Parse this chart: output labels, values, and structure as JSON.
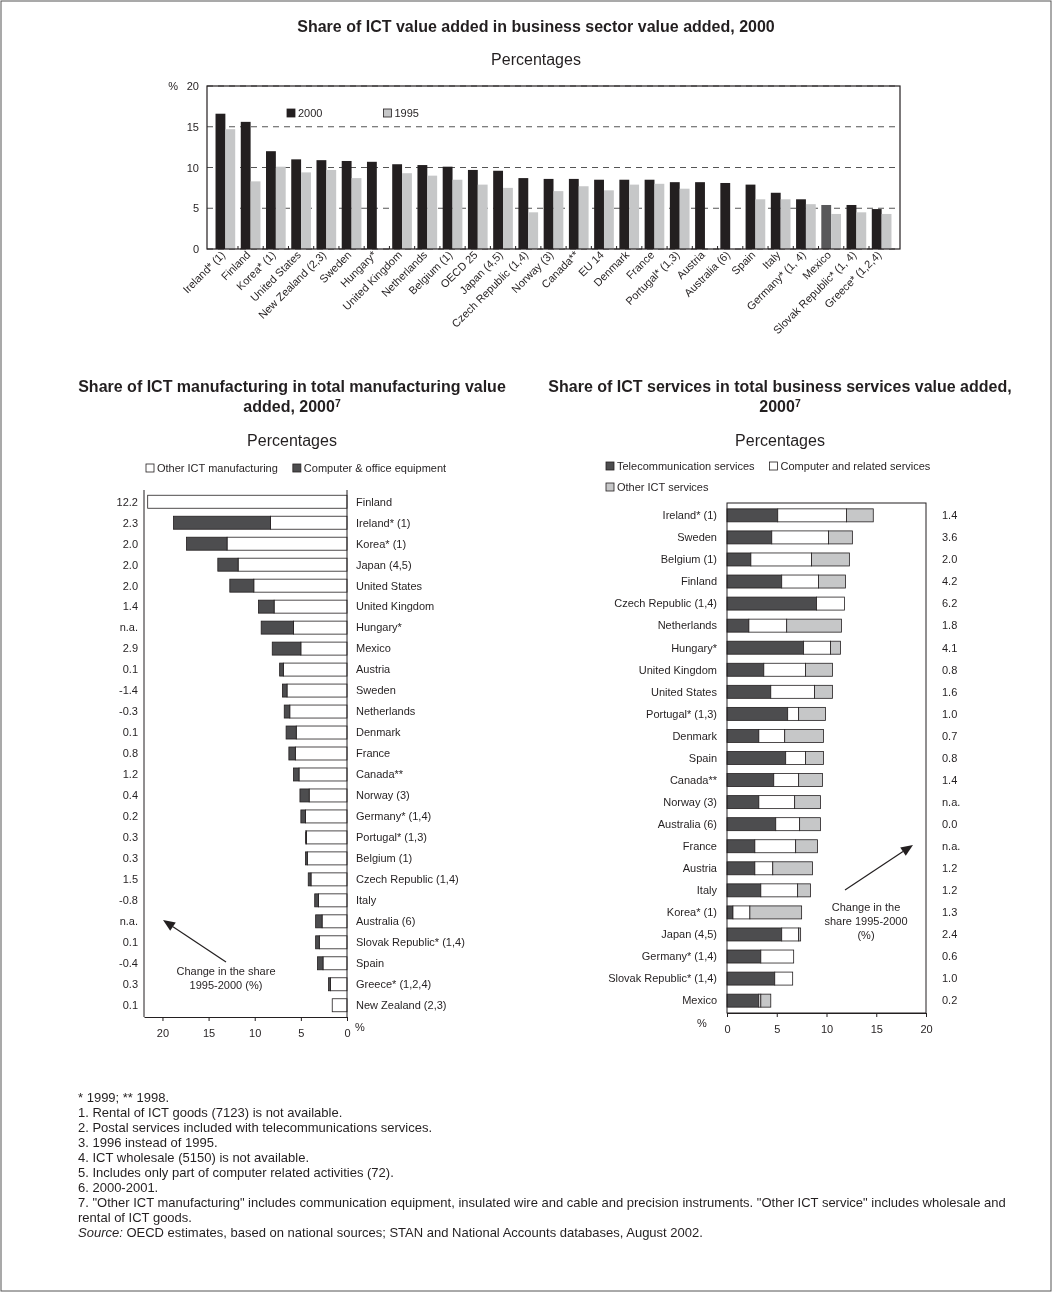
{
  "chart_data": [
    {
      "type": "bar",
      "title": "Share of ICT value added in business sector value added, 2000",
      "subtitle": "Percentages",
      "ylabel": "%",
      "categories": [
        "Ireland* (1)",
        "Finland",
        "Korea* (1)",
        "United States",
        "New Zealand (2,3)",
        "Sweden",
        "Hungary*",
        "United Kingdom",
        "Netherlands",
        "Belgium (1)",
        "OECD 25",
        "Japan (4,5)",
        "Czech Republic (1,4)",
        "Norway (3)",
        "Canada**",
        "EU 14",
        "Denmark",
        "France",
        "Portugal* (1,3)",
        "Austria",
        "Australia (6)",
        "Spain",
        "Italy",
        "Germany* (1, 4)",
        "Mexico",
        "Slovak Republic* (1, 4)",
        "Greece* (1,2,4)"
      ],
      "series": [
        {
          "name": "2000",
          "color": "#231f20",
          "colors": [
            "#231f20",
            "#231f20",
            "#231f20",
            "#231f20",
            "#231f20",
            "#231f20",
            "#231f20",
            "#231f20",
            "#231f20",
            "#231f20",
            "#231f20",
            "#231f20",
            "#231f20",
            "#231f20",
            "#231f20",
            "#231f20",
            "#231f20",
            "#231f20",
            "#231f20",
            "#231f20",
            "#231f20",
            "#231f20",
            "#231f20",
            "#231f20",
            "#58585a",
            "#231f20",
            "#231f20"
          ],
          "values": [
            16.6,
            15.6,
            12.0,
            11.0,
            10.9,
            10.8,
            10.7,
            10.4,
            10.3,
            10.1,
            9.7,
            9.6,
            8.7,
            8.6,
            8.6,
            8.5,
            8.5,
            8.5,
            8.2,
            8.2,
            8.1,
            7.9,
            6.9,
            6.1,
            5.4,
            5.4,
            4.9
          ]
        },
        {
          "name": "1995",
          "color": "#c6c7c8",
          "values": [
            14.7,
            8.3,
            10.1,
            9.4,
            9.7,
            8.7,
            null,
            9.3,
            9.0,
            8.5,
            7.9,
            7.5,
            4.5,
            7.1,
            7.7,
            7.2,
            7.9,
            8.0,
            7.4,
            null,
            null,
            6.1,
            6.1,
            5.5,
            4.3,
            4.5,
            4.3
          ]
        }
      ],
      "ylim": [
        0,
        20
      ],
      "yticks": [
        0,
        5,
        10,
        15,
        20
      ],
      "grid": "y",
      "legend": "top left"
    },
    {
      "type": "bar",
      "orientation": "horizontal",
      "stacked": true,
      "title": "Share of ICT manufacturing in total manufacturing value added, 2000$^{7}$",
      "subtitle": "Percentages",
      "xlabel": "%",
      "categories": [
        "Finland",
        "Ireland* (1)",
        "Korea* (1)",
        "Japan (4,5)",
        "United States",
        "United Kingdom",
        "Hungary*",
        "Mexico",
        "Austria",
        "Sweden",
        "Netherlands",
        "Denmark",
        "France",
        "Canada**",
        "Norway (3)",
        "Germany* (1,4)",
        "Portugal* (1,3)",
        "Belgium (1)",
        "Czech Republic (1,4)",
        "Italy",
        "Australia (6)",
        "Slovak Republic* (1,4)",
        "Spain",
        "Greece* (1,2,4)",
        "New Zealand (2,3)"
      ],
      "series": [
        {
          "name": "Other ICT manufacturing",
          "color": "#ffffff",
          "values": [
            21.6,
            8.3,
            13.0,
            11.8,
            10.1,
            7.9,
            5.8,
            5.0,
            6.9,
            6.5,
            6.2,
            5.5,
            5.6,
            5.2,
            4.1,
            4.5,
            4.4,
            4.3,
            3.9,
            3.1,
            2.7,
            3.0,
            2.6,
            1.8,
            1.6
          ]
        },
        {
          "name": "Computer & office equipment",
          "color": "#4d4d4f",
          "values": [
            0,
            10.5,
            4.4,
            2.2,
            2.6,
            1.7,
            3.5,
            3.1,
            0.4,
            0.5,
            0.6,
            1.1,
            0.7,
            0.6,
            1.0,
            0.5,
            0.1,
            0.2,
            0.3,
            0.4,
            0.7,
            0.4,
            0.6,
            0.2,
            0
          ]
        }
      ],
      "xlim": [
        22,
        0
      ],
      "xticks": [
        20,
        15,
        10,
        5,
        0
      ],
      "legend": "top",
      "annotations": [
        "12.2",
        "2.3",
        "2.0",
        "2.0",
        "2.0",
        "1.4",
        "n.a.",
        "2.9",
        "0.1",
        "-1.4",
        "-0.3",
        "0.1",
        "0.8",
        "1.2",
        "0.4",
        "0.2",
        "0.3",
        "0.3",
        "1.5",
        "-0.8",
        "n.a.",
        "0.1",
        "-0.4",
        "0.3",
        "0.1",
        "Change in the share 1995-2000 (%)"
      ]
    },
    {
      "type": "bar",
      "orientation": "horizontal",
      "stacked": true,
      "title": "Share of ICT services in total business services value added, 2000$^{7}$",
      "subtitle": "Percentages",
      "xlabel": "%",
      "categories": [
        "Ireland* (1)",
        "Sweden",
        "Belgium (1)",
        "Finland",
        "Czech Republic (1,4)",
        "Netherlands",
        "Hungary*",
        "United Kingdom",
        "United States",
        "Portugal* (1,3)",
        "Denmark",
        "Spain",
        "Canada**",
        "Norway (3)",
        "Australia (6)",
        "France",
        "Austria",
        "Italy",
        "Korea* (1)",
        "Japan (4,5)",
        "Germany* (1,4)",
        "Slovak Republic* (1,4)",
        "Mexico"
      ],
      "series": [
        {
          "name": "Telecommunication services",
          "color": "#4d4d4f",
          "values": [
            5.1,
            4.5,
            2.4,
            5.5,
            9.0,
            2.2,
            7.7,
            3.7,
            4.4,
            6.1,
            3.2,
            5.9,
            4.7,
            3.2,
            4.9,
            2.8,
            2.8,
            3.4,
            0.6,
            5.5,
            3.4,
            4.8,
            3.2
          ]
        },
        {
          "name": "Computer and related services",
          "color": "#ffffff",
          "values": [
            6.9,
            5.7,
            6.1,
            3.7,
            2.8,
            3.8,
            2.7,
            4.2,
            4.4,
            1.1,
            2.6,
            2.0,
            2.5,
            3.6,
            2.4,
            4.1,
            1.8,
            3.7,
            1.7,
            1.7,
            3.3,
            1.8,
            0.2
          ]
        },
        {
          "name": "Other ICT services",
          "color": "#c6c7c8",
          "values": [
            2.7,
            2.4,
            3.8,
            2.7,
            0,
            5.5,
            1.0,
            2.7,
            1.8,
            2.7,
            3.9,
            1.8,
            2.4,
            2.6,
            2.1,
            2.2,
            4.0,
            1.3,
            5.2,
            0.2,
            0,
            0,
            1.0
          ]
        }
      ],
      "xlim": [
        0,
        20
      ],
      "xticks": [
        0,
        5,
        10,
        15,
        20
      ],
      "legend": "top",
      "annotations": [
        "1.4",
        "3.6",
        "2.0",
        "4.2",
        "6.2",
        "1.8",
        "4.1",
        "0.8",
        "1.6",
        "1.0",
        "0.7",
        "0.8",
        "1.4",
        "n.a.",
        "0.0",
        "n.a.",
        "1.2",
        "1.2",
        "1.3",
        "2.4",
        "0.6",
        "1.0",
        "0.2",
        "Change in the share 1995-2000 (%)"
      ]
    },
    {
      "type": "other",
      "annotations": [
        "* 1999; ** 1998.",
        "1. Rental of ICT goods (7123) is not available.",
        "2. Postal services included with telecommunications services.",
        "3. 1996 instead of 1995.",
        "4. ICT wholesale (5150) is not available.",
        "5. Includes only part of computer related activities (72).",
        "6. 2000-2001.",
        "7. \"Other ICT manufacturing\" includes communication equipment, insulated wire and cable and precision instruments. \"Other ICT service\" includes wholesale and rental of ICT goods.",
        "Source: OECD estimates, based on national sources; STAN and National Accounts databases, August 2002."
      ]
    }
  ]
}
